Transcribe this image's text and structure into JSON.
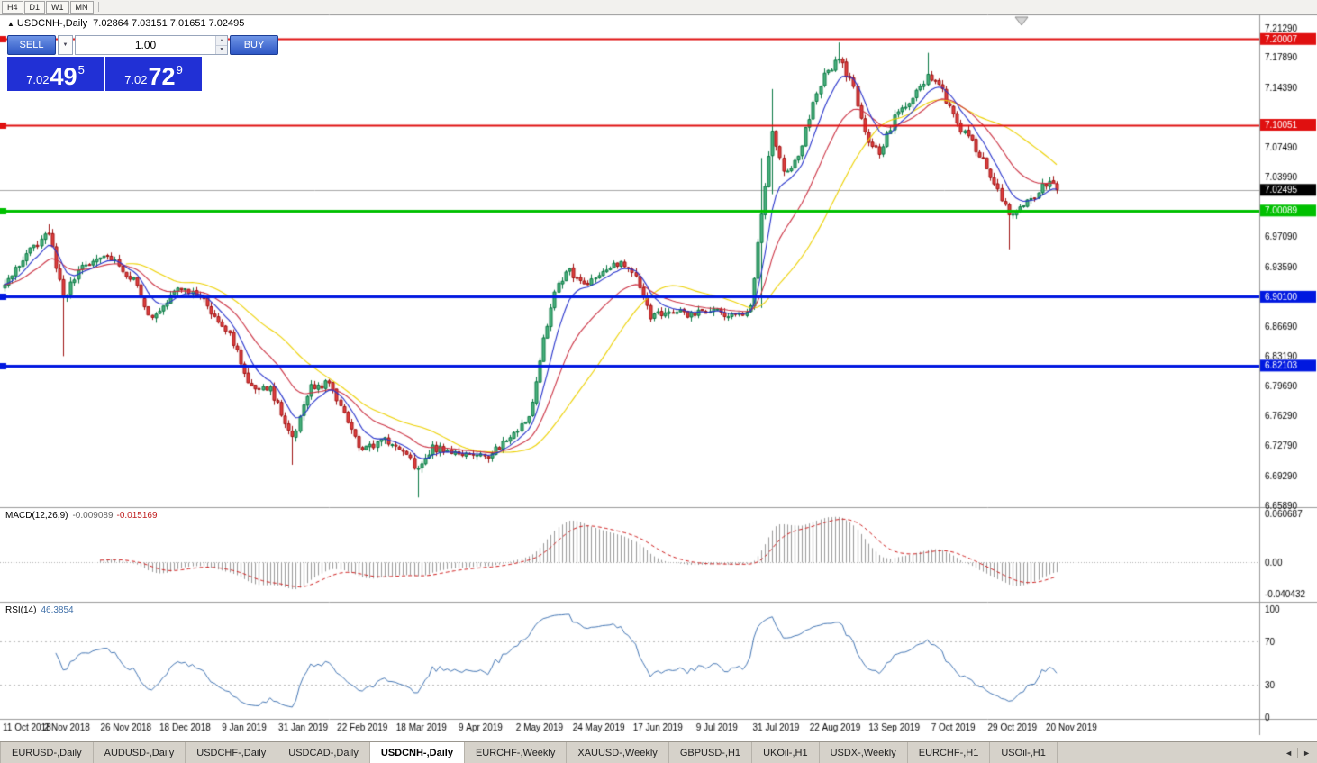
{
  "toolbar": {
    "buttons": [
      "H4",
      "D1",
      "W1",
      "MN"
    ]
  },
  "chart_header": {
    "symbol_icon": "▲",
    "title": "USDCNH-,Daily",
    "ohlc": "7.02864 7.03151 7.01651 7.02495"
  },
  "trade_panel": {
    "sell_label": "SELL",
    "buy_label": "BUY",
    "volume": "1.00",
    "dropdown_icon": "▼",
    "spin_up_icon": "▲",
    "spin_down_icon": "▼",
    "sell_price": {
      "prefix": "7.02",
      "pips": "49",
      "sup": "5"
    },
    "buy_price": {
      "prefix": "7.02",
      "pips": "72",
      "sup": "9"
    }
  },
  "chart_data": {
    "type": "candlestick",
    "symbol": "USDCNH",
    "timeframe": "Daily",
    "open": 7.02864,
    "high": 7.03151,
    "low": 7.01651,
    "close": 7.02495,
    "bars": 286,
    "price_axis": {
      "max": 7.2129,
      "min": 6.6589,
      "labels": [
        {
          "text": "7.21290",
          "price": 7.2129,
          "style": "plain"
        },
        {
          "text": "7.20007",
          "price": 7.20007,
          "style": "tag",
          "bg": "#e01010"
        },
        {
          "text": "7.17890",
          "price": 7.1789,
          "style": "plain"
        },
        {
          "text": "7.14390",
          "price": 7.1439,
          "style": "plain"
        },
        {
          "text": "7.10051",
          "price": 7.10051,
          "style": "tag",
          "bg": "#e01010"
        },
        {
          "text": "7.07490",
          "price": 7.0749,
          "style": "plain"
        },
        {
          "text": "7.03990",
          "price": 7.0399,
          "style": "plain"
        },
        {
          "text": "7.02495",
          "price": 7.02495,
          "style": "tag",
          "bg": "#000000"
        },
        {
          "text": "7.00089",
          "price": 7.00089,
          "style": "tag",
          "bg": "#00c000"
        },
        {
          "text": "6.97090",
          "price": 6.9709,
          "style": "plain"
        },
        {
          "text": "6.93590",
          "price": 6.9359,
          "style": "plain"
        },
        {
          "text": "6.90100",
          "price": 6.901,
          "style": "tag",
          "bg": "#0018e0"
        },
        {
          "text": "6.86690",
          "price": 6.8669,
          "style": "plain"
        },
        {
          "text": "6.83190",
          "price": 6.8319,
          "style": "plain"
        },
        {
          "text": "6.82103",
          "price": 6.82103,
          "style": "tag",
          "bg": "#0018e0"
        },
        {
          "text": "6.79690",
          "price": 6.7969,
          "style": "plain"
        },
        {
          "text": "6.76290",
          "price": 6.7629,
          "style": "plain"
        },
        {
          "text": "6.72790",
          "price": 6.7279,
          "style": "plain"
        },
        {
          "text": "6.69290",
          "price": 6.6929,
          "style": "plain"
        },
        {
          "text": "6.65890",
          "price": 6.6589,
          "style": "plain"
        }
      ]
    },
    "hlines": [
      {
        "price": 7.20007,
        "color": "#e01010",
        "width": 2
      },
      {
        "price": 7.10051,
        "color": "#e01010",
        "width": 2
      },
      {
        "price": 7.00089,
        "color": "#00c000",
        "width": 3
      },
      {
        "price": 6.901,
        "color": "#0018e0",
        "width": 3
      },
      {
        "price": 6.82103,
        "color": "#0018e0",
        "width": 3
      }
    ],
    "current": {
      "price": 7.02495,
      "line_color": "#a8a8a8"
    },
    "candle_colors": {
      "up_fill": "#4db380",
      "up_border": "#0c7a45",
      "down_fill": "#e24040",
      "down_border": "#a01515"
    },
    "ma_lines": [
      {
        "period": 34,
        "type": "sma",
        "color": "#edd100"
      },
      {
        "period": 20,
        "type": "ema",
        "color": "#cc3344"
      },
      {
        "period": 8,
        "type": "ema",
        "color": "#2733cc"
      }
    ],
    "close_anchors": [
      [
        0,
        6.915
      ],
      [
        7,
        6.955
      ],
      [
        12,
        6.975
      ],
      [
        16,
        6.9
      ],
      [
        21,
        6.935
      ],
      [
        28,
        6.95
      ],
      [
        35,
        6.92
      ],
      [
        40,
        6.875
      ],
      [
        47,
        6.915
      ],
      [
        54,
        6.895
      ],
      [
        61,
        6.86
      ],
      [
        66,
        6.8
      ],
      [
        72,
        6.795
      ],
      [
        78,
        6.735
      ],
      [
        83,
        6.795
      ],
      [
        88,
        6.8
      ],
      [
        93,
        6.755
      ],
      [
        97,
        6.72
      ],
      [
        102,
        6.737
      ],
      [
        108,
        6.722
      ],
      [
        112,
        6.7
      ],
      [
        116,
        6.726
      ],
      [
        124,
        6.72
      ],
      [
        131,
        6.716
      ],
      [
        137,
        6.737
      ],
      [
        142,
        6.76
      ],
      [
        146,
        6.85
      ],
      [
        149,
        6.905
      ],
      [
        152,
        6.932
      ],
      [
        158,
        6.915
      ],
      [
        163,
        6.93
      ],
      [
        167,
        6.943
      ],
      [
        171,
        6.925
      ],
      [
        175,
        6.878
      ],
      [
        180,
        6.886
      ],
      [
        186,
        6.88
      ],
      [
        192,
        6.884
      ],
      [
        198,
        6.879
      ],
      [
        202,
        6.886
      ],
      [
        205,
        7.0
      ],
      [
        208,
        7.095
      ],
      [
        211,
        7.046
      ],
      [
        215,
        7.06
      ],
      [
        219,
        7.128
      ],
      [
        222,
        7.158
      ],
      [
        226,
        7.178
      ],
      [
        230,
        7.142
      ],
      [
        233,
        7.09
      ],
      [
        237,
        7.066
      ],
      [
        242,
        7.118
      ],
      [
        246,
        7.13
      ],
      [
        250,
        7.158
      ],
      [
        254,
        7.138
      ],
      [
        258,
        7.1
      ],
      [
        261,
        7.086
      ],
      [
        265,
        7.058
      ],
      [
        269,
        7.028
      ],
      [
        272,
        6.992
      ],
      [
        276,
        7.006
      ],
      [
        280,
        7.024
      ],
      [
        283,
        7.038
      ],
      [
        285,
        7.02495
      ]
    ],
    "wicks": [
      {
        "i": 12,
        "high": 6.985
      },
      {
        "i": 16,
        "low": 6.832
      },
      {
        "i": 78,
        "low": 6.706
      },
      {
        "i": 112,
        "low": 6.668
      },
      {
        "i": 205,
        "low": 6.888,
        "high": 7.062
      },
      {
        "i": 208,
        "low": 7.02,
        "high": 7.142
      },
      {
        "i": 226,
        "high": 7.196
      },
      {
        "i": 250,
        "high": 7.184
      },
      {
        "i": 272,
        "low": 6.956
      }
    ],
    "date_labels": [
      [
        "11 Oct 2018",
        1
      ],
      [
        "2 Nov 2018",
        17
      ],
      [
        "26 Nov 2018",
        33
      ],
      [
        "18 Dec 2018",
        49
      ],
      [
        "9 Jan 2019",
        65
      ],
      [
        "31 Jan 2019",
        81
      ],
      [
        "22 Feb 2019",
        97
      ],
      [
        "18 Mar 2019",
        113
      ],
      [
        "9 Apr 2019",
        129
      ],
      [
        "2 May 2019",
        145
      ],
      [
        "24 May 2019",
        161
      ],
      [
        "17 Jun 2019",
        177
      ],
      [
        "9 Jul 2019",
        193
      ],
      [
        "31 Jul 2019",
        209
      ],
      [
        "22 Aug 2019",
        225
      ],
      [
        "13 Sep 2019",
        241
      ],
      [
        "7 Oct 2019",
        257
      ],
      [
        "29 Oct 2019",
        273
      ],
      [
        "20 Nov 2019",
        289
      ]
    ],
    "macd": {
      "title": "MACD(12,26,9)",
      "value": "-0.009089",
      "signal_value": "-0.015169",
      "fast": 12,
      "slow": 26,
      "signal_period": 9,
      "hist_color": "#9a9a9a",
      "signal_color": "#d02020",
      "axis": [
        {
          "text": "0.060687",
          "v": 0.060687
        },
        {
          "text": "0.00",
          "v": 0
        },
        {
          "text": "-0.040432",
          "v": -0.040432
        }
      ]
    },
    "rsi": {
      "title": "RSI(14)",
      "value": "46.3854",
      "period": 14,
      "line_color": "#4577b5",
      "levels": [
        70,
        30
      ],
      "axis": [
        {
          "text": "100",
          "v": 100
        },
        {
          "text": "70",
          "v": 70
        },
        {
          "text": "30",
          "v": 30
        },
        {
          "text": "0",
          "v": 0
        }
      ]
    }
  },
  "tabs": {
    "items": [
      "EURUSD-,Daily",
      "AUDUSD-,Daily",
      "USDCHF-,Daily",
      "USDCAD-,Daily",
      "USDCNH-,Daily",
      "EURCHF-,Weekly",
      "XAUUSD-,Weekly",
      "GBPUSD-,H1",
      "UKOil-,H1",
      "USDX-,Weekly",
      "EURCHF-,H1",
      "USOil-,H1"
    ],
    "active_index": 4,
    "scroll_left_icon": "◄",
    "scroll_right_icon": "►"
  }
}
